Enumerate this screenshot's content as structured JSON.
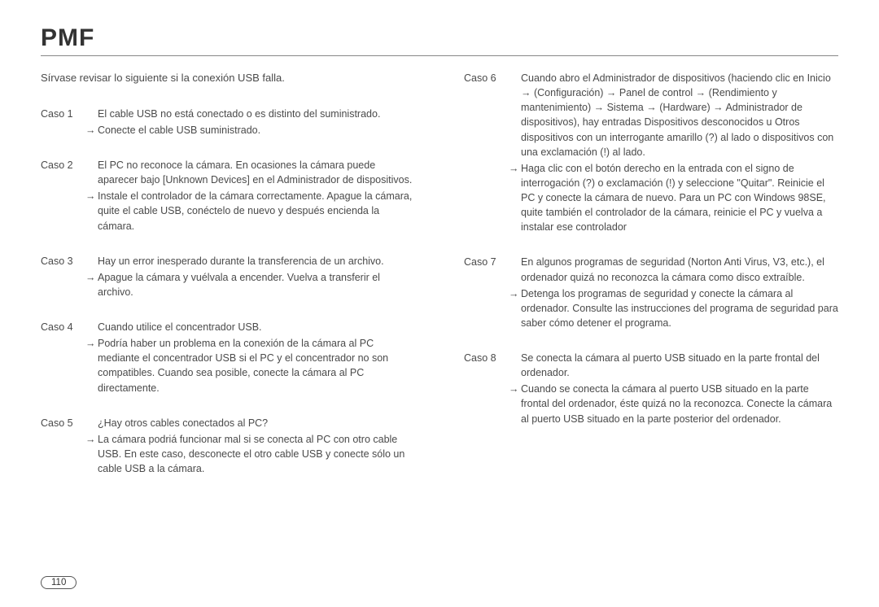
{
  "title": "PMF",
  "intro": "Sírvase revisar lo siguiente si la conexión USB falla.",
  "pageNumber": "110",
  "left": [
    {
      "label": "Caso 1",
      "desc": "El cable USB no está conectado o es distinto del suministrado.",
      "arrow": "Conecte el cable USB suministrado."
    },
    {
      "label": "Caso 2",
      "desc": "El PC no reconoce la cámara.\nEn ocasiones la cámara puede aparecer bajo [Unknown Devices] en el Administrador de dispositivos.",
      "arrow": "Instale el controlador de la cámara correctamente.\nApague la cámara, quite el cable USB, conéctelo de nuevo y después encienda la cámara."
    },
    {
      "label": "Caso 3",
      "desc": "Hay un error inesperado durante la transferencia de un archivo.",
      "arrow": "Apague la cámara y vuélvala a encender. Vuelva a transferir el archivo."
    },
    {
      "label": "Caso 4",
      "desc": "Cuando utilice el concentrador USB.",
      "arrow": "Podría haber un problema en la conexión de la cámara al PC mediante el concentrador USB si el PC y el concentrador no son compatibles. Cuando sea posible, conecte la cámara al PC directamente."
    },
    {
      "label": "Caso 5",
      "desc": "¿Hay otros cables conectados al PC?",
      "arrow": "La cámara podriá funcionar mal si se conecta al PC con otro cable USB. En este caso, desconecte el otro cable USB y conecte sólo un cable USB a la cámara."
    }
  ],
  "right": [
    {
      "label": "Caso 6",
      "desc": "Cuando abro el Administrador de dispositivos (haciendo clic en Inicio → (Configuración) → Panel de control → (Rendimiento y mantenimiento) → Sistema → (Hardware) → Administrador de dispositivos), hay entradas Dispositivos desconocidos u Otros dispositivos con un interrogante amarillo (?) al lado o dispositivos con una exclamación (!) al lado.",
      "arrow": "Haga clic con el botón derecho en la entrada con el signo de interrogación (?) o exclamación (!) y seleccione \"Quitar\". Reinicie el PC y conecte la cámara de nuevo. Para un PC con Windows 98SE, quite también el controlador de la cámara, reinicie el PC y vuelva a instalar ese controlador"
    },
    {
      "label": "Caso 7",
      "desc": "En algunos programas de seguridad (Norton Anti Virus, V3, etc.), el ordenador quizá no reconozca la cámara como disco extraíble.",
      "arrow": "Detenga los programas de seguridad y conecte la cámara al ordenador. Consulte las instrucciones del programa de seguridad para saber cómo detener el programa."
    },
    {
      "label": "Caso 8",
      "desc": "Se conecta la cámara al puerto USB situado en la parte frontal del ordenador.",
      "arrow": "Cuando se conecta la cámara al puerto USB situado en la parte frontal del ordenador, éste quizá no la reconozca. Conecte la cámara al puerto USB situado en la parte posterior del ordenador."
    }
  ]
}
